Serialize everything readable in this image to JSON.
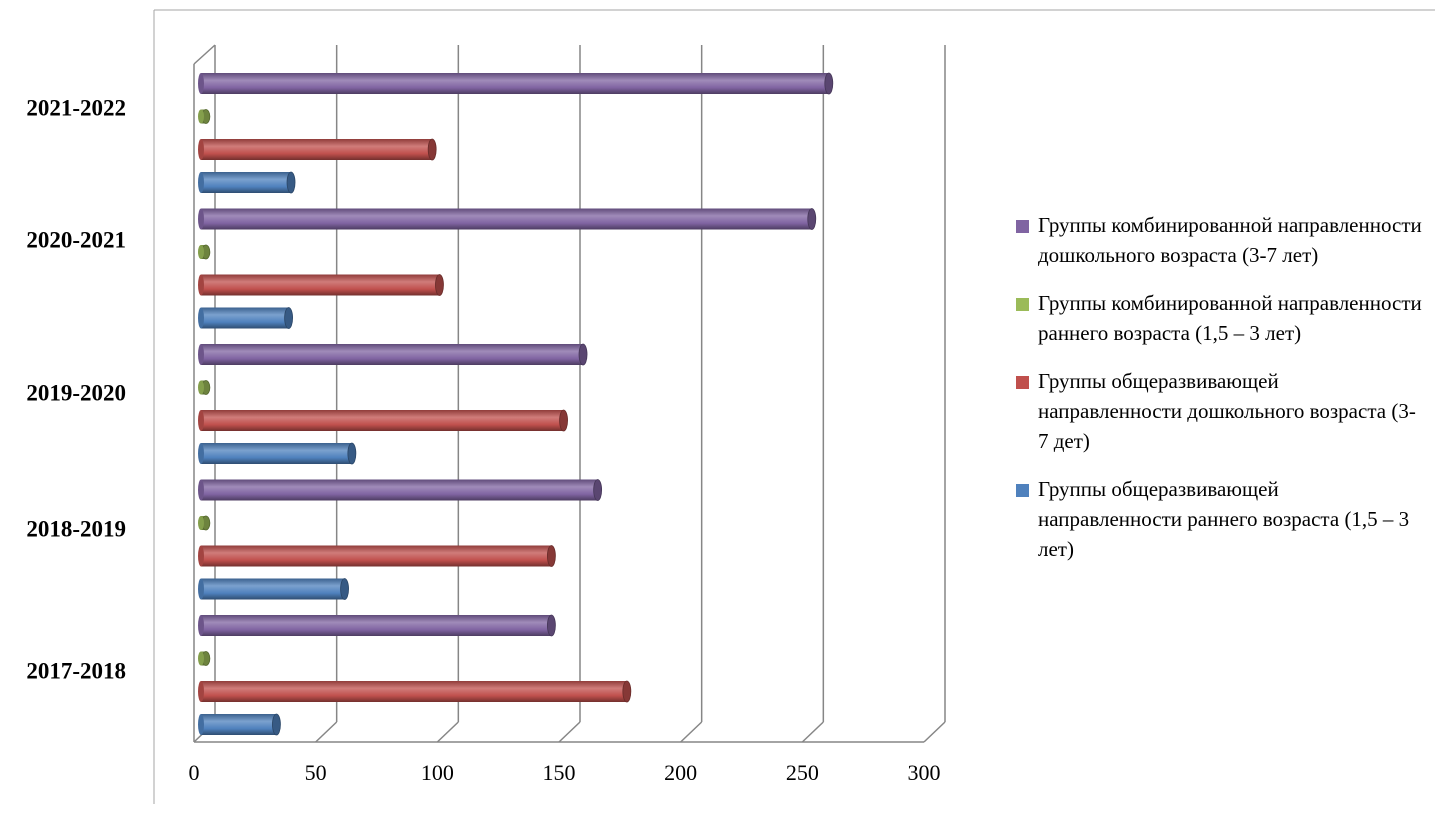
{
  "chart_data": {
    "type": "bar",
    "orientation": "horizontal",
    "style": "3d-cylinder",
    "categories": [
      "2017-2018",
      "2018-2019",
      "2019-2020",
      "2020-2021",
      "2021-2022"
    ],
    "series": [
      {
        "name": "Группы общеразвивающей направленности раннего возраста (1,5 – 3 лет)",
        "color": "#4f81bd",
        "values": [
          31,
          59,
          62,
          36,
          37
        ]
      },
      {
        "name": "Группы общеразвивающей направленности дошкольного возраста  (3-7 дет)",
        "color": "#c0504d",
        "values": [
          175,
          144,
          149,
          98,
          95
        ]
      },
      {
        "name": "Группы комбинированной направленности раннего возраста (1,5 – 3 лет)",
        "color": "#9bbb59",
        "values": [
          2,
          2,
          2,
          2,
          2
        ]
      },
      {
        "name": "Группы комбинированной направленности дошкольного возраста (3-7 лет)",
        "color": "#8064a2",
        "values": [
          144,
          163,
          157,
          251,
          258
        ]
      }
    ],
    "x_ticks": [
      "0",
      "50",
      "100",
      "150",
      "200",
      "250",
      "300"
    ],
    "xlim": [
      0,
      300
    ],
    "grid": true,
    "legend_position": "right",
    "title": "",
    "xlabel": "",
    "ylabel": ""
  },
  "legend": [
    {
      "text": "Группы комбинированной направленности дошкольного возраста (3-7 лет)",
      "color": "#8064a2"
    },
    {
      "text": "Группы комбинированной направленности раннего возраста (1,5 – 3 лет)",
      "color": "#9bbb59"
    },
    {
      "text": "Группы общеразвивающей направленности дошкольного возраста  (3-7 дет)",
      "color": "#c0504d"
    },
    {
      "text": "Группы общеразвивающей направленности раннего возраста (1,5 – 3 лет)",
      "color": "#4f81bd"
    }
  ]
}
